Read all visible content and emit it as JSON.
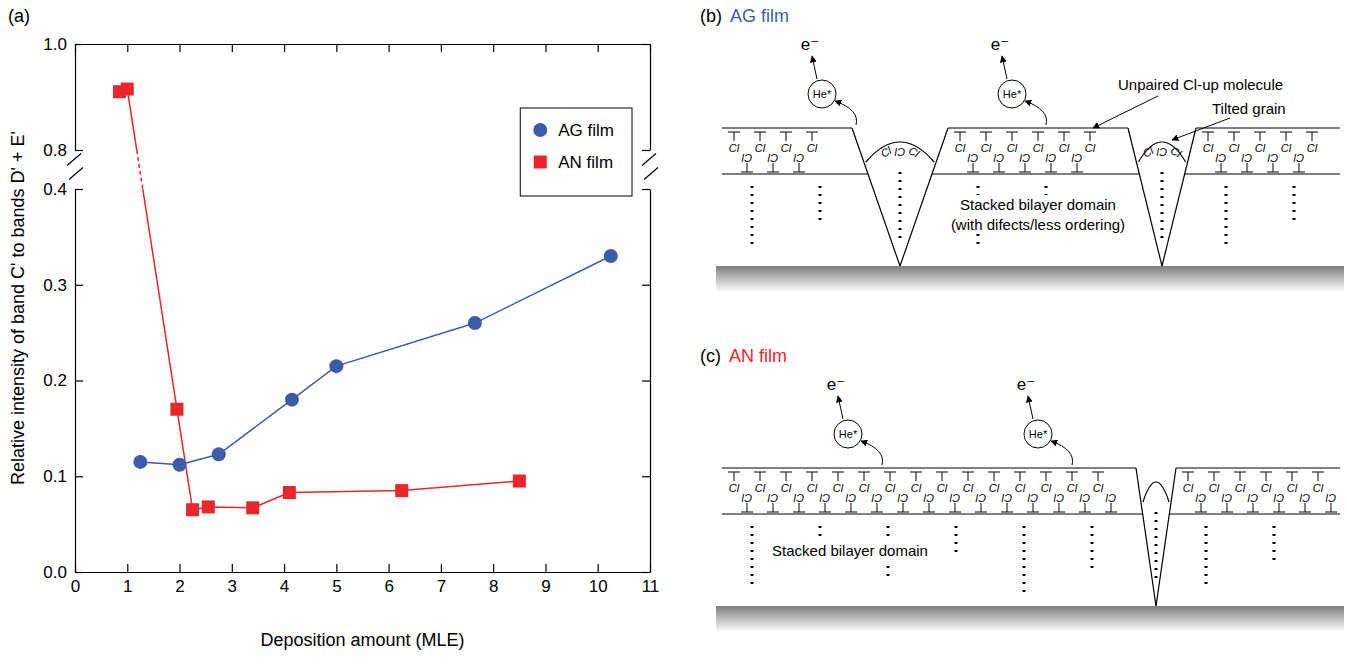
{
  "chart_data": {
    "type": "line",
    "title": "(a)",
    "x_label": "Deposition amount (MLE)",
    "y_label": "Relative intensity of band C' to bands D' + E'",
    "xlim": [
      0,
      11
    ],
    "xticks": [
      0,
      1,
      2,
      3,
      4,
      5,
      6,
      7,
      8,
      9,
      10,
      11
    ],
    "ylim": [
      0,
      1
    ],
    "y_break": [
      0.4,
      0.8
    ],
    "yticks": [
      {
        "value": 0,
        "label": "0.0"
      },
      0.1,
      0.2,
      0.3,
      0.4,
      0.8,
      {
        "value": 1,
        "label": "1.0"
      }
    ],
    "legend": "upper right",
    "series": [
      {
        "name": "AG film",
        "color": "#3d5ba9",
        "marker": "circle",
        "x": [
          1.25,
          2.0,
          2.75,
          4.15,
          5.0,
          7.65,
          10.25
        ],
        "values": [
          0.115,
          0.112,
          0.123,
          0.18,
          0.215,
          0.26,
          0.33
        ]
      },
      {
        "name": "AN film",
        "color": "#e8262b",
        "marker": "square",
        "x": [
          0.85,
          1.0,
          1.95,
          2.25,
          2.55,
          3.4,
          4.1,
          6.25,
          8.5
        ],
        "values": [
          0.91,
          0.915,
          0.17,
          0.065,
          0.068,
          0.067,
          0.083,
          0.085,
          0.095
        ]
      }
    ]
  },
  "diagrams": [
    {
      "letter": "(b)",
      "title": "AG film",
      "color": "#3d5ba9",
      "electron": "e⁻",
      "excited_atom": "He*",
      "molecule": "Cl",
      "annotations": [
        "Unpaired Cl-up molecule",
        "Tilted grain"
      ],
      "domain_label": [
        "Stacked bilayer domain",
        "(with difects/less ordering)"
      ]
    },
    {
      "letter": "(c)",
      "title": "AN film",
      "color": "#e8262b",
      "electron": "e⁻",
      "excited_atom": "He*",
      "molecule": "Cl",
      "domain_label": [
        "Stacked bilayer domain"
      ]
    }
  ]
}
